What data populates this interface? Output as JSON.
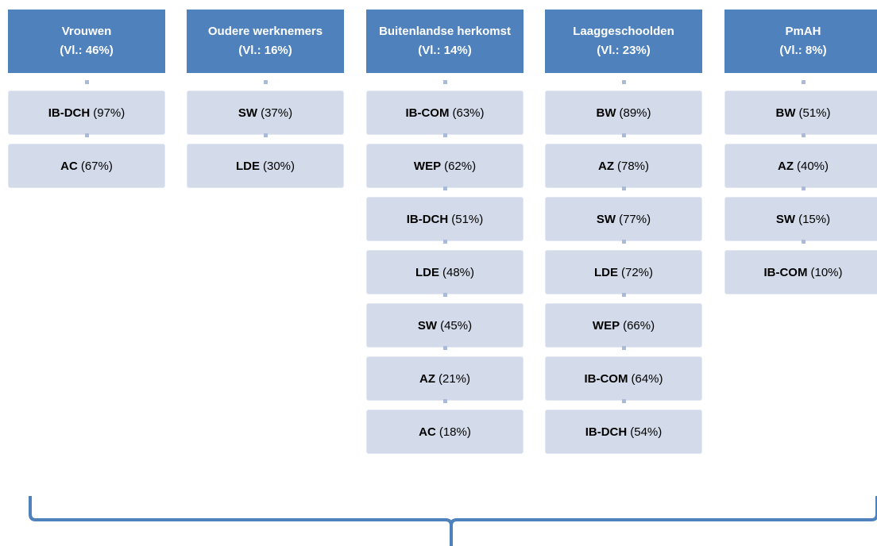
{
  "columns": [
    {
      "title": "Vrouwen",
      "share": "(Vl.: 46%)",
      "items": [
        {
          "code": "IB-DCH",
          "pct": "(97%)"
        },
        {
          "code": "AC",
          "pct": "(67%)"
        }
      ]
    },
    {
      "title": "Oudere werknemers",
      "share": "(Vl.: 16%)",
      "items": [
        {
          "code": "SW",
          "pct": "(37%)"
        },
        {
          "code": "LDE",
          "pct": "(30%)"
        }
      ]
    },
    {
      "title": "Buitenlandse herkomst",
      "share": "(Vl.: 14%)",
      "items": [
        {
          "code": "IB-COM",
          "pct": "(63%)"
        },
        {
          "code": "WEP",
          "pct": "(62%)"
        },
        {
          "code": "IB-DCH",
          "pct": "(51%)"
        },
        {
          "code": "LDE",
          "pct": "(48%)"
        },
        {
          "code": "SW",
          "pct": "(45%)"
        },
        {
          "code": "AZ",
          "pct": "(21%)"
        },
        {
          "code": "AC",
          "pct": "(18%)"
        }
      ]
    },
    {
      "title": "Laaggeschoolden",
      "share": "(Vl.: 23%)",
      "items": [
        {
          "code": "BW",
          "pct": "(89%)"
        },
        {
          "code": "AZ",
          "pct": "(78%)"
        },
        {
          "code": "SW",
          "pct": "(77%)"
        },
        {
          "code": "LDE",
          "pct": "(72%)"
        },
        {
          "code": "WEP",
          "pct": "(66%)"
        },
        {
          "code": "IB-COM",
          "pct": "(64%)"
        },
        {
          "code": "IB-DCH",
          "pct": "(54%)"
        }
      ]
    },
    {
      "title": "PmAH",
      "share": "(Vl.: 8%)",
      "items": [
        {
          "code": "BW",
          "pct": "(51%)"
        },
        {
          "code": "AZ",
          "pct": "(40%)"
        },
        {
          "code": "SW",
          "pct": "(15%)"
        },
        {
          "code": "IB-COM",
          "pct": "(10%)"
        }
      ]
    }
  ]
}
